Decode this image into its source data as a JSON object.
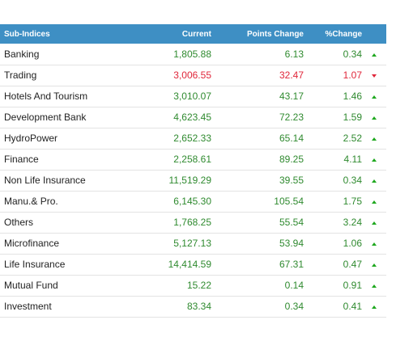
{
  "table": {
    "headers": [
      "Sub-Indices",
      "Current",
      "Points Change",
      "%Change"
    ],
    "rows": [
      {
        "name": "Banking",
        "current": "1,805.88",
        "points": "6.13",
        "pct": "0.34",
        "dir": "up"
      },
      {
        "name": "Trading",
        "current": "3,006.55",
        "points": "32.47",
        "pct": "1.07",
        "dir": "down"
      },
      {
        "name": "Hotels And Tourism",
        "current": "3,010.07",
        "points": "43.17",
        "pct": "1.46",
        "dir": "up"
      },
      {
        "name": "Development Bank",
        "current": "4,623.45",
        "points": "72.23",
        "pct": "1.59",
        "dir": "up"
      },
      {
        "name": "HydroPower",
        "current": "2,652.33",
        "points": "65.14",
        "pct": "2.52",
        "dir": "up"
      },
      {
        "name": "Finance",
        "current": "2,258.61",
        "points": "89.25",
        "pct": "4.11",
        "dir": "up"
      },
      {
        "name": "Non Life Insurance",
        "current": "11,519.29",
        "points": "39.55",
        "pct": "0.34",
        "dir": "up"
      },
      {
        "name": "Manu.& Pro.",
        "current": "6,145.30",
        "points": "105.54",
        "pct": "1.75",
        "dir": "up"
      },
      {
        "name": "Others",
        "current": "1,768.25",
        "points": "55.54",
        "pct": "3.24",
        "dir": "up"
      },
      {
        "name": "Microfinance",
        "current": "5,127.13",
        "points": "53.94",
        "pct": "1.06",
        "dir": "up"
      },
      {
        "name": "Life Insurance",
        "current": "14,414.59",
        "points": "67.31",
        "pct": "0.47",
        "dir": "up"
      },
      {
        "name": "Mutual Fund",
        "current": "15.22",
        "points": "0.14",
        "pct": "0.91",
        "dir": "up"
      },
      {
        "name": "Investment",
        "current": "83.34",
        "points": "0.34",
        "pct": "0.41",
        "dir": "up"
      }
    ]
  },
  "colors": {
    "header_bg": "#3e8fc4",
    "up": "#2f8a2f",
    "down": "#e0263a"
  }
}
